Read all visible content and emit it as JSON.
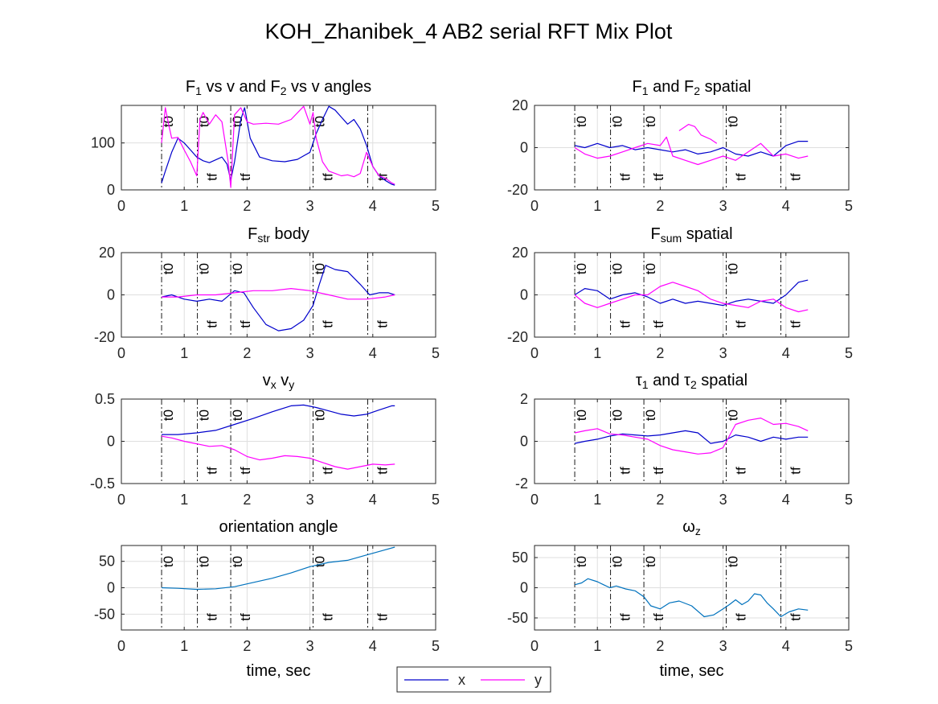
{
  "figure": {
    "title": "KOH_Zhanibek_4 AB2 serial RFT Mix Plot"
  },
  "legend": {
    "placement": "bottom-center",
    "entries": [
      {
        "label": "x",
        "color": "#0000cc"
      },
      {
        "label": "y",
        "color": "#ff00ff"
      }
    ]
  },
  "colors": {
    "x": "#0000cc",
    "y": "#ff00ff",
    "single": "#0072bd",
    "grid": "#dfdfdf",
    "axis": "#262626"
  },
  "chart_data": [
    {
      "type": "line",
      "title": "F1 vs v and F2 vs v angles",
      "title_parts": [
        {
          "t": "F"
        },
        {
          "t": "1",
          "sub": true
        },
        {
          "t": " vs v and F"
        },
        {
          "t": "2",
          "sub": true
        },
        {
          "t": " vs v angles"
        }
      ],
      "xlabel": "",
      "xlim": [
        0,
        5
      ],
      "ylim": [
        0,
        180
      ],
      "xticks": [
        0,
        1,
        2,
        3,
        4,
        5
      ],
      "yticks": [
        0,
        100
      ],
      "markers": {
        "t0": [
          0.64,
          1.21,
          1.74,
          3.05
        ],
        "tf": [
          1.21,
          1.74,
          3.05,
          3.92
        ]
      },
      "series": [
        {
          "name": "x",
          "color": "#0000cc",
          "x": [
            0.64,
            0.7,
            0.8,
            0.9,
            1.0,
            1.1,
            1.2,
            1.3,
            1.4,
            1.5,
            1.6,
            1.68,
            1.74,
            1.8,
            1.9,
            1.96,
            2.05,
            2.2,
            2.4,
            2.6,
            2.8,
            3.0,
            3.1,
            3.2,
            3.3,
            3.4,
            3.5,
            3.6,
            3.7,
            3.8,
            3.9,
            4.0,
            4.1,
            4.2,
            4.3,
            4.35
          ],
          "y": [
            15,
            40,
            80,
            110,
            100,
            85,
            70,
            62,
            58,
            64,
            70,
            55,
            20,
            60,
            150,
            175,
            110,
            70,
            62,
            60,
            65,
            80,
            120,
            150,
            178,
            170,
            155,
            140,
            150,
            130,
            95,
            50,
            30,
            20,
            12,
            10
          ]
        },
        {
          "name": "y",
          "color": "#ff00ff",
          "x": [
            0.64,
            0.7,
            0.75,
            0.8,
            0.9,
            1.0,
            1.1,
            1.2,
            1.25,
            1.3,
            1.4,
            1.5,
            1.6,
            1.7,
            1.74,
            1.8,
            1.9,
            2.0,
            2.1,
            2.3,
            2.5,
            2.7,
            2.9,
            3.0,
            3.05,
            3.1,
            3.2,
            3.3,
            3.4,
            3.5,
            3.6,
            3.7,
            3.8,
            3.9,
            4.0,
            4.1,
            4.2,
            4.3,
            4.35
          ],
          "y": [
            100,
            175,
            140,
            110,
            112,
            85,
            60,
            30,
            150,
            165,
            140,
            160,
            145,
            60,
            5,
            160,
            175,
            145,
            140,
            142,
            140,
            150,
            178,
            140,
            165,
            110,
            60,
            40,
            35,
            30,
            32,
            28,
            35,
            80,
            50,
            30,
            25,
            15,
            12
          ]
        }
      ]
    },
    {
      "type": "line",
      "title": "F1 and F2 spatial",
      "title_parts": [
        {
          "t": "F"
        },
        {
          "t": "1",
          "sub": true
        },
        {
          "t": " and F"
        },
        {
          "t": "2",
          "sub": true
        },
        {
          "t": " spatial"
        }
      ],
      "xlabel": "",
      "xlim": [
        0,
        5
      ],
      "ylim": [
        -20,
        20
      ],
      "xticks": [
        0,
        1,
        2,
        3,
        4,
        5
      ],
      "yticks": [
        -20,
        0,
        20
      ],
      "markers": {
        "t0": [
          0.64,
          1.21,
          1.74,
          3.05
        ],
        "tf": [
          1.21,
          1.74,
          3.05,
          3.92
        ]
      },
      "series": [
        {
          "name": "x",
          "color": "#0000cc",
          "x": [
            0.64,
            0.8,
            1.0,
            1.2,
            1.4,
            1.6,
            1.8,
            2.0,
            2.2,
            2.4,
            2.6,
            2.8,
            3.0,
            3.2,
            3.4,
            3.6,
            3.8,
            4.0,
            4.2,
            4.35
          ],
          "y": [
            1,
            0,
            2,
            0,
            1,
            -1,
            0,
            -1,
            -2,
            -1,
            -3,
            -2,
            0,
            -3,
            -4,
            -2,
            -4,
            1,
            3,
            3
          ]
        },
        {
          "name": "y",
          "color": "#ff00ff",
          "x": [
            0.64,
            0.8,
            1.0,
            1.2,
            1.4,
            1.6,
            1.8,
            2.0,
            2.1,
            2.2,
            2.4,
            2.6,
            2.8,
            3.0,
            3.2,
            3.4,
            3.6,
            3.8,
            4.0,
            4.2,
            4.35
          ],
          "y": [
            0,
            -3,
            -5,
            -4,
            -2,
            0,
            2,
            1,
            5,
            -4,
            -6,
            -8,
            -6,
            -4,
            -6,
            -2,
            2,
            -4,
            -3,
            -5,
            -4
          ]
        },
        {
          "name": "y",
          "color": "#ff00ff",
          "x": [
            2.3,
            2.45,
            2.55,
            2.65,
            2.8,
            2.9
          ],
          "y": [
            8,
            11,
            10,
            6,
            4,
            2
          ]
        }
      ]
    },
    {
      "type": "line",
      "title": "Fstr body",
      "title_parts": [
        {
          "t": "F"
        },
        {
          "t": "str",
          "sub": true
        },
        {
          "t": " body"
        }
      ],
      "xlabel": "",
      "xlim": [
        0,
        5
      ],
      "ylim": [
        -20,
        20
      ],
      "xticks": [
        0,
        1,
        2,
        3,
        4,
        5
      ],
      "yticks": [
        -20,
        0,
        20
      ],
      "markers": {
        "t0": [
          0.64,
          1.21,
          1.74,
          3.05
        ],
        "tf": [
          1.21,
          1.74,
          3.05,
          3.92
        ]
      },
      "series": [
        {
          "name": "x",
          "color": "#0000cc",
          "x": [
            0.64,
            0.8,
            1.0,
            1.2,
            1.4,
            1.6,
            1.8,
            1.95,
            2.1,
            2.3,
            2.5,
            2.7,
            2.9,
            3.05,
            3.15,
            3.25,
            3.4,
            3.6,
            3.8,
            3.95,
            4.1,
            4.25,
            4.35
          ],
          "y": [
            -1,
            0,
            -2,
            -3,
            -2,
            -3,
            2,
            1,
            -6,
            -14,
            -17,
            -16,
            -12,
            -5,
            5,
            14,
            12,
            11,
            5,
            0,
            1,
            1,
            0
          ]
        },
        {
          "name": "y",
          "color": "#ff00ff",
          "x": [
            0.64,
            0.9,
            1.2,
            1.5,
            1.8,
            2.1,
            2.4,
            2.7,
            3.0,
            3.3,
            3.6,
            3.9,
            4.2,
            4.35
          ],
          "y": [
            -1,
            -1,
            0,
            0,
            1,
            2,
            2,
            3,
            2,
            0,
            -2,
            -2,
            -1,
            0
          ]
        }
      ]
    },
    {
      "type": "line",
      "title": "Fsum spatial",
      "title_parts": [
        {
          "t": "F"
        },
        {
          "t": "sum",
          "sub": true
        },
        {
          "t": " spatial"
        }
      ],
      "xlabel": "",
      "xlim": [
        0,
        5
      ],
      "ylim": [
        -20,
        20
      ],
      "xticks": [
        0,
        1,
        2,
        3,
        4,
        5
      ],
      "yticks": [
        -20,
        0,
        20
      ],
      "markers": {
        "t0": [
          0.64,
          1.21,
          1.74,
          3.05
        ],
        "tf": [
          1.21,
          1.74,
          3.05,
          3.92
        ]
      },
      "series": [
        {
          "name": "x",
          "color": "#0000cc",
          "x": [
            0.64,
            0.8,
            1.0,
            1.2,
            1.4,
            1.6,
            1.8,
            2.0,
            2.2,
            2.4,
            2.6,
            2.8,
            3.0,
            3.2,
            3.4,
            3.6,
            3.8,
            4.0,
            4.2,
            4.35
          ],
          "y": [
            0,
            3,
            2,
            -2,
            0,
            1,
            -1,
            -4,
            -2,
            -4,
            -3,
            -4,
            -5,
            -3,
            -2,
            -3,
            -4,
            0,
            6,
            7
          ]
        },
        {
          "name": "y",
          "color": "#ff00ff",
          "x": [
            0.64,
            0.8,
            1.0,
            1.2,
            1.4,
            1.6,
            1.8,
            2.0,
            2.2,
            2.4,
            2.6,
            2.8,
            3.0,
            3.2,
            3.4,
            3.6,
            3.8,
            4.0,
            4.2,
            4.35
          ],
          "y": [
            0,
            -4,
            -6,
            -4,
            -2,
            0,
            0,
            4,
            6,
            4,
            2,
            -2,
            -4,
            -5,
            -6,
            -3,
            -2,
            -6,
            -8,
            -7
          ]
        }
      ]
    },
    {
      "type": "line",
      "title": "vx vy",
      "title_parts": [
        {
          "t": "v"
        },
        {
          "t": "x",
          "sub": true
        },
        {
          "t": " v"
        },
        {
          "t": "y",
          "sub": true
        }
      ],
      "xlabel": "",
      "xlim": [
        0,
        5
      ],
      "ylim": [
        -0.5,
        0.5
      ],
      "xticks": [
        0,
        1,
        2,
        3,
        4,
        5
      ],
      "yticks": [
        -0.5,
        0,
        0.5
      ],
      "markers": {
        "t0": [
          0.64,
          1.21,
          1.74,
          3.05
        ],
        "tf": [
          1.21,
          1.74,
          3.05,
          3.92
        ]
      },
      "series": [
        {
          "name": "x",
          "color": "#0000cc",
          "x": [
            0.64,
            0.9,
            1.2,
            1.5,
            1.8,
            2.1,
            2.4,
            2.7,
            2.9,
            3.1,
            3.3,
            3.5,
            3.7,
            3.9,
            4.1,
            4.3,
            4.35
          ],
          "y": [
            0.08,
            0.08,
            0.1,
            0.13,
            0.2,
            0.27,
            0.35,
            0.42,
            0.43,
            0.4,
            0.36,
            0.32,
            0.3,
            0.32,
            0.37,
            0.42,
            0.42
          ]
        },
        {
          "name": "y",
          "color": "#ff00ff",
          "x": [
            0.64,
            0.8,
            1.0,
            1.2,
            1.4,
            1.6,
            1.8,
            2.0,
            2.2,
            2.4,
            2.6,
            2.8,
            3.0,
            3.2,
            3.4,
            3.6,
            3.8,
            4.0,
            4.2,
            4.35
          ],
          "y": [
            0.06,
            0.04,
            0.0,
            -0.03,
            -0.06,
            -0.05,
            -0.1,
            -0.18,
            -0.22,
            -0.2,
            -0.17,
            -0.18,
            -0.2,
            -0.25,
            -0.3,
            -0.33,
            -0.3,
            -0.27,
            -0.28,
            -0.27
          ]
        }
      ]
    },
    {
      "type": "line",
      "title": "τ1 and τ2 spatial",
      "title_parts": [
        {
          "t": "τ"
        },
        {
          "t": "1",
          "sub": true
        },
        {
          "t": " and τ"
        },
        {
          "t": "2",
          "sub": true
        },
        {
          "t": " spatial"
        }
      ],
      "xlabel": "",
      "xlim": [
        0,
        5
      ],
      "ylim": [
        -2,
        2
      ],
      "xticks": [
        0,
        1,
        2,
        3,
        4,
        5
      ],
      "yticks": [
        -2,
        0,
        2
      ],
      "markers": {
        "t0": [
          0.64,
          1.21,
          1.74,
          3.05
        ],
        "tf": [
          1.21,
          1.74,
          3.05,
          3.92
        ]
      },
      "series": [
        {
          "name": "x",
          "color": "#0000cc",
          "x": [
            0.64,
            0.8,
            1.0,
            1.2,
            1.4,
            1.6,
            1.8,
            2.0,
            2.2,
            2.4,
            2.6,
            2.8,
            3.0,
            3.2,
            3.4,
            3.6,
            3.8,
            4.0,
            4.2,
            4.35
          ],
          "y": [
            -0.1,
            0.0,
            0.1,
            0.25,
            0.35,
            0.3,
            0.25,
            0.3,
            0.4,
            0.5,
            0.4,
            -0.1,
            0.0,
            0.3,
            0.2,
            0.0,
            0.2,
            0.1,
            0.2,
            0.2
          ]
        },
        {
          "name": "y",
          "color": "#ff00ff",
          "x": [
            0.64,
            0.8,
            1.0,
            1.2,
            1.4,
            1.6,
            1.8,
            2.0,
            2.2,
            2.4,
            2.6,
            2.8,
            3.0,
            3.2,
            3.4,
            3.6,
            3.8,
            4.0,
            4.2,
            4.35
          ],
          "y": [
            0.4,
            0.5,
            0.6,
            0.35,
            0.3,
            0.2,
            0.1,
            -0.2,
            -0.4,
            -0.5,
            -0.6,
            -0.55,
            -0.3,
            0.8,
            1.0,
            1.1,
            0.8,
            0.85,
            0.7,
            0.5
          ]
        }
      ]
    },
    {
      "type": "line",
      "title": "orientation angle",
      "title_parts": [
        {
          "t": "orientation angle"
        }
      ],
      "xlabel": "time, sec",
      "xlim": [
        0,
        5
      ],
      "ylim": [
        -80,
        80
      ],
      "xticks": [
        0,
        1,
        2,
        3,
        4,
        5
      ],
      "yticks": [
        -50,
        0,
        50
      ],
      "markers": {
        "t0": [
          0.64,
          1.21,
          1.74,
          3.05
        ],
        "tf": [
          1.21,
          1.74,
          3.05,
          3.92
        ]
      },
      "series": [
        {
          "name": "orientation",
          "color": "#0072bd",
          "x": [
            0.64,
            0.9,
            1.2,
            1.5,
            1.8,
            2.1,
            2.4,
            2.7,
            3.0,
            3.3,
            3.6,
            3.9,
            4.2,
            4.35
          ],
          "y": [
            0,
            -1,
            -3,
            -2,
            2,
            10,
            18,
            28,
            40,
            48,
            52,
            62,
            72,
            77
          ]
        }
      ]
    },
    {
      "type": "line",
      "title": "ωz",
      "title_parts": [
        {
          "t": "ω"
        },
        {
          "t": "z",
          "sub": true
        }
      ],
      "xlabel": "time, sec",
      "xlim": [
        0,
        5
      ],
      "ylim": [
        -70,
        70
      ],
      "xticks": [
        0,
        1,
        2,
        3,
        4,
        5
      ],
      "yticks": [
        -50,
        0,
        50
      ],
      "markers": {
        "t0": [
          0.64,
          1.21,
          1.74,
          3.05
        ],
        "tf": [
          1.21,
          1.74,
          3.05,
          3.92
        ]
      },
      "series": [
        {
          "name": "omega",
          "color": "#0072bd",
          "x": [
            0.64,
            0.75,
            0.85,
            1.0,
            1.1,
            1.2,
            1.3,
            1.45,
            1.6,
            1.74,
            1.85,
            2.0,
            2.15,
            2.3,
            2.5,
            2.7,
            2.85,
            3.0,
            3.1,
            3.2,
            3.3,
            3.4,
            3.5,
            3.6,
            3.7,
            3.8,
            3.92,
            4.05,
            4.2,
            4.35
          ],
          "y": [
            5,
            8,
            15,
            10,
            5,
            0,
            3,
            -2,
            -5,
            -15,
            -30,
            -35,
            -25,
            -22,
            -30,
            -48,
            -45,
            -35,
            -28,
            -20,
            -28,
            -22,
            -10,
            -12,
            -25,
            -35,
            -48,
            -40,
            -35,
            -37
          ]
        }
      ]
    }
  ]
}
